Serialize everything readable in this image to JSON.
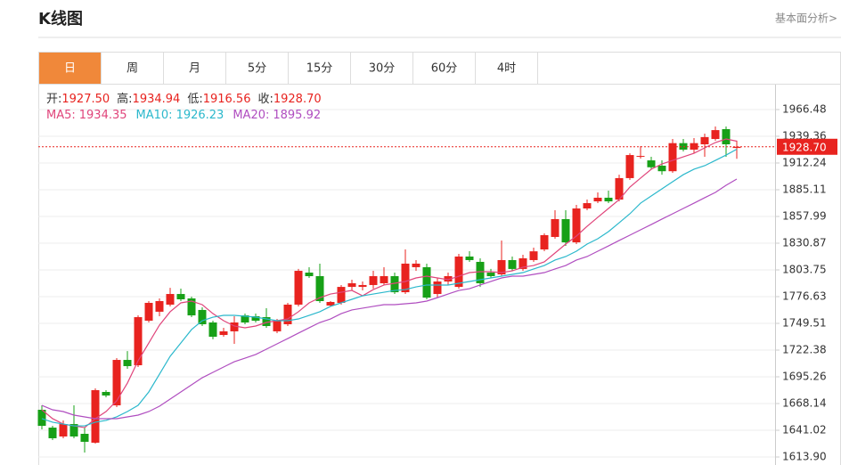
{
  "header": {
    "title": "K线图",
    "link": "基本面分析>"
  },
  "tabs": [
    "日",
    "周",
    "月",
    "5分",
    "15分",
    "30分",
    "60分",
    "4时"
  ],
  "active_tab": 0,
  "info": [
    {
      "label": "开:",
      "value": "1927.50"
    },
    {
      "label": "高:",
      "value": "1934.94"
    },
    {
      "label": "低:",
      "value": "1916.56"
    },
    {
      "label": "收:",
      "value": "1928.70"
    }
  ],
  "chart_data": {
    "type": "candlestick",
    "up_color": "#e8231f",
    "down_color": "#17a017",
    "ylim": [
      1605.76,
      1991.77
    ],
    "yticks": [
      {
        "value": 1613.9,
        "label": "1613.90"
      },
      1641.02,
      1668.14,
      1695.26,
      1722.38,
      1749.51,
      1776.63,
      1803.75,
      1830.87,
      1857.99,
      1885.11,
      1912.24,
      1939.36,
      1966.48
    ],
    "grid": true,
    "last_price": {
      "value": 1928.7,
      "label": "1928.70"
    },
    "ohlc": [
      [
        1661.8,
        1666.3,
        1641.9,
        1645.5
      ],
      [
        1643.7,
        1645.5,
        1631.1,
        1632.9
      ],
      [
        1634.7,
        1651.0,
        1632.9,
        1647.3
      ],
      [
        1647.3,
        1666.3,
        1632.9,
        1634.7
      ],
      [
        1637.4,
        1643.7,
        1618.4,
        1629.3
      ],
      [
        1628.4,
        1683.5,
        1627.5,
        1681.7
      ],
      [
        1679.9,
        1681.7,
        1674.5,
        1676.3
      ],
      [
        1666.3,
        1714.2,
        1664.5,
        1712.4
      ],
      [
        1712.4,
        1721.4,
        1703.4,
        1706.1
      ],
      [
        1707.0,
        1757.6,
        1705.2,
        1755.8
      ],
      [
        1752.2,
        1772.1,
        1750.4,
        1770.3
      ],
      [
        1761.3,
        1774.8,
        1756.7,
        1772.1
      ],
      [
        1768.5,
        1785.6,
        1766.7,
        1779.3
      ],
      [
        1779.3,
        1784.7,
        1772.1,
        1773.9
      ],
      [
        1774.8,
        1776.6,
        1755.8,
        1757.6
      ],
      [
        1763.1,
        1765.8,
        1746.8,
        1748.6
      ],
      [
        1750.4,
        1752.2,
        1733.3,
        1735.9
      ],
      [
        1737.7,
        1745.0,
        1735.9,
        1741.4
      ],
      [
        1741.4,
        1756.7,
        1728.7,
        1750.4
      ],
      [
        1757.6,
        1759.4,
        1748.6,
        1750.4
      ],
      [
        1756.7,
        1759.4,
        1750.4,
        1752.2
      ],
      [
        1755.8,
        1764.9,
        1745.0,
        1746.8
      ],
      [
        1741.4,
        1754.0,
        1739.6,
        1752.2
      ],
      [
        1748.6,
        1770.3,
        1746.8,
        1768.5
      ],
      [
        1768.5,
        1804.7,
        1766.7,
        1802.8
      ],
      [
        1801.0,
        1806.5,
        1795.6,
        1797.4
      ],
      [
        1797.4,
        1810.1,
        1770.3,
        1772.1
      ],
      [
        1767.6,
        1772.1,
        1766.7,
        1771.2
      ],
      [
        1770.3,
        1788.4,
        1768.5,
        1786.5
      ],
      [
        1786.5,
        1793.8,
        1782.9,
        1790.2
      ],
      [
        1786.5,
        1792.0,
        1782.9,
        1788.4
      ],
      [
        1788.4,
        1802.8,
        1784.7,
        1797.4
      ],
      [
        1790.2,
        1806.5,
        1788.4,
        1797.4
      ],
      [
        1797.4,
        1801.0,
        1779.3,
        1781.1
      ],
      [
        1781.1,
        1824.5,
        1779.3,
        1810.1
      ],
      [
        1806.5,
        1813.7,
        1802.8,
        1810.1
      ],
      [
        1806.5,
        1810.1,
        1773.9,
        1775.6
      ],
      [
        1779.3,
        1795.6,
        1775.6,
        1792.0
      ],
      [
        1792.0,
        1801.0,
        1788.4,
        1797.4
      ],
      [
        1786.5,
        1820.0,
        1784.7,
        1817.3
      ],
      [
        1817.3,
        1822.7,
        1811.9,
        1813.7
      ],
      [
        1811.9,
        1815.5,
        1786.5,
        1790.2
      ],
      [
        1801.0,
        1804.7,
        1795.6,
        1797.4
      ],
      [
        1799.2,
        1833.6,
        1797.4,
        1813.7
      ],
      [
        1813.7,
        1817.3,
        1802.8,
        1804.7
      ],
      [
        1804.7,
        1819.1,
        1802.8,
        1815.5
      ],
      [
        1813.7,
        1826.3,
        1811.9,
        1822.6
      ],
      [
        1824.5,
        1840.8,
        1822.7,
        1839.0
      ],
      [
        1837.2,
        1864.3,
        1835.4,
        1855.3
      ],
      [
        1855.3,
        1864.3,
        1828.1,
        1831.7
      ],
      [
        1831.7,
        1869.7,
        1829.95,
        1866.1
      ],
      [
        1866.1,
        1875.1,
        1864.3,
        1871.5
      ],
      [
        1873.3,
        1882.4,
        1871.5,
        1877.0
      ],
      [
        1877.0,
        1884.2,
        1871.5,
        1873.3
      ],
      [
        1875.1,
        1900.4,
        1873.3,
        1896.9
      ],
      [
        1896.9,
        1922.1,
        1895.0,
        1920.3
      ],
      [
        1918.5,
        1929.4,
        1916.7,
        1919.4
      ],
      [
        1914.9,
        1918.5,
        1905.9,
        1907.9
      ],
      [
        1909.5,
        1914.9,
        1900.4,
        1903.9
      ],
      [
        1903.9,
        1936.6,
        1902.3,
        1932.4
      ],
      [
        1932.4,
        1936.6,
        1924.0,
        1925.8
      ],
      [
        1925.8,
        1937.5,
        1922.1,
        1932.4
      ],
      [
        1931.2,
        1942.0,
        1918.5,
        1938.5
      ],
      [
        1936.6,
        1949.3,
        1934.8,
        1945.6
      ],
      [
        1946.6,
        1949.3,
        1918.5,
        1931.2
      ],
      [
        1927.5,
        1934.94,
        1916.56,
        1928.7
      ]
    ],
    "ma": [
      {
        "name": "MA5:",
        "color": "#e0457b",
        "value_label": "1934.35",
        "values": [
          1661.8,
          1652.8,
          1647.3,
          1645.5,
          1643.7,
          1652.8,
          1660.0,
          1670.9,
          1688.9,
          1711.5,
          1729.6,
          1747.7,
          1761.3,
          1770.3,
          1772.1,
          1768.5,
          1759.4,
          1752.2,
          1746.8,
          1745.0,
          1746.8,
          1750.4,
          1752.2,
          1754.0,
          1761.3,
          1770.3,
          1775.6,
          1779.3,
          1781.1,
          1782.9,
          1777.5,
          1783.8,
          1788.4,
          1790.2,
          1792.0,
          1795.6,
          1797.4,
          1795.6,
          1793.8,
          1797.4,
          1801.0,
          1801.9,
          1801.9,
          1801.0,
          1802.8,
          1806.5,
          1808.2,
          1811.9,
          1820.9,
          1829.95,
          1838.1,
          1848.0,
          1857.1,
          1866.1,
          1875.1,
          1887.8,
          1896.9,
          1905.9,
          1911.3,
          1914.9,
          1918.5,
          1922.1,
          1927.6,
          1933.0,
          1936.6,
          1934.35
        ]
      },
      {
        "name": "MA10:",
        "color": "#2bb8cc",
        "value_label": "1926.23",
        "values": [
          1652.8,
          1649.2,
          1647.3,
          1645.5,
          1645.5,
          1649.2,
          1651.0,
          1654.6,
          1660.0,
          1666.3,
          1679.9,
          1697.9,
          1716.1,
          1729.6,
          1743.2,
          1752.2,
          1755.8,
          1757.6,
          1757.6,
          1756.7,
          1755.8,
          1754.0,
          1752.2,
          1752.2,
          1754.0,
          1757.6,
          1761.3,
          1766.7,
          1770.3,
          1773.9,
          1777.5,
          1779.3,
          1781.1,
          1782.9,
          1783.8,
          1786.5,
          1788.4,
          1788.4,
          1788.4,
          1790.2,
          1792.0,
          1793.8,
          1795.6,
          1797.4,
          1799.2,
          1801.0,
          1804.7,
          1808.2,
          1813.7,
          1817.3,
          1822.7,
          1829.95,
          1835.4,
          1842.6,
          1851.6,
          1860.7,
          1871.5,
          1878.8,
          1886.0,
          1893.2,
          1900.4,
          1905.9,
          1909.5,
          1914.9,
          1920.3,
          1926.23
        ]
      },
      {
        "name": "MA20:",
        "color": "#b04ec0",
        "value_label": "1895.92",
        "values": [
          1666.3,
          1661.8,
          1660.0,
          1656.4,
          1654.6,
          1652.8,
          1652.8,
          1652.8,
          1654.6,
          1656.4,
          1660.0,
          1665.4,
          1672.6,
          1679.9,
          1687.1,
          1694.3,
          1699.8,
          1705.2,
          1710.6,
          1714.2,
          1717.9,
          1723.3,
          1728.7,
          1734.1,
          1739.6,
          1745.0,
          1750.4,
          1754.0,
          1759.4,
          1763.1,
          1764.9,
          1766.7,
          1768.5,
          1768.5,
          1769.4,
          1770.3,
          1772.1,
          1775.6,
          1779.3,
          1782.9,
          1784.7,
          1788.4,
          1792.0,
          1795.6,
          1797.4,
          1797.4,
          1799.2,
          1801.0,
          1804.7,
          1808.2,
          1813.7,
          1817.3,
          1822.7,
          1828.1,
          1833.6,
          1839.0,
          1844.4,
          1849.8,
          1855.3,
          1860.7,
          1866.1,
          1871.5,
          1877.0,
          1882.4,
          1889.6,
          1895.92
        ]
      }
    ]
  }
}
